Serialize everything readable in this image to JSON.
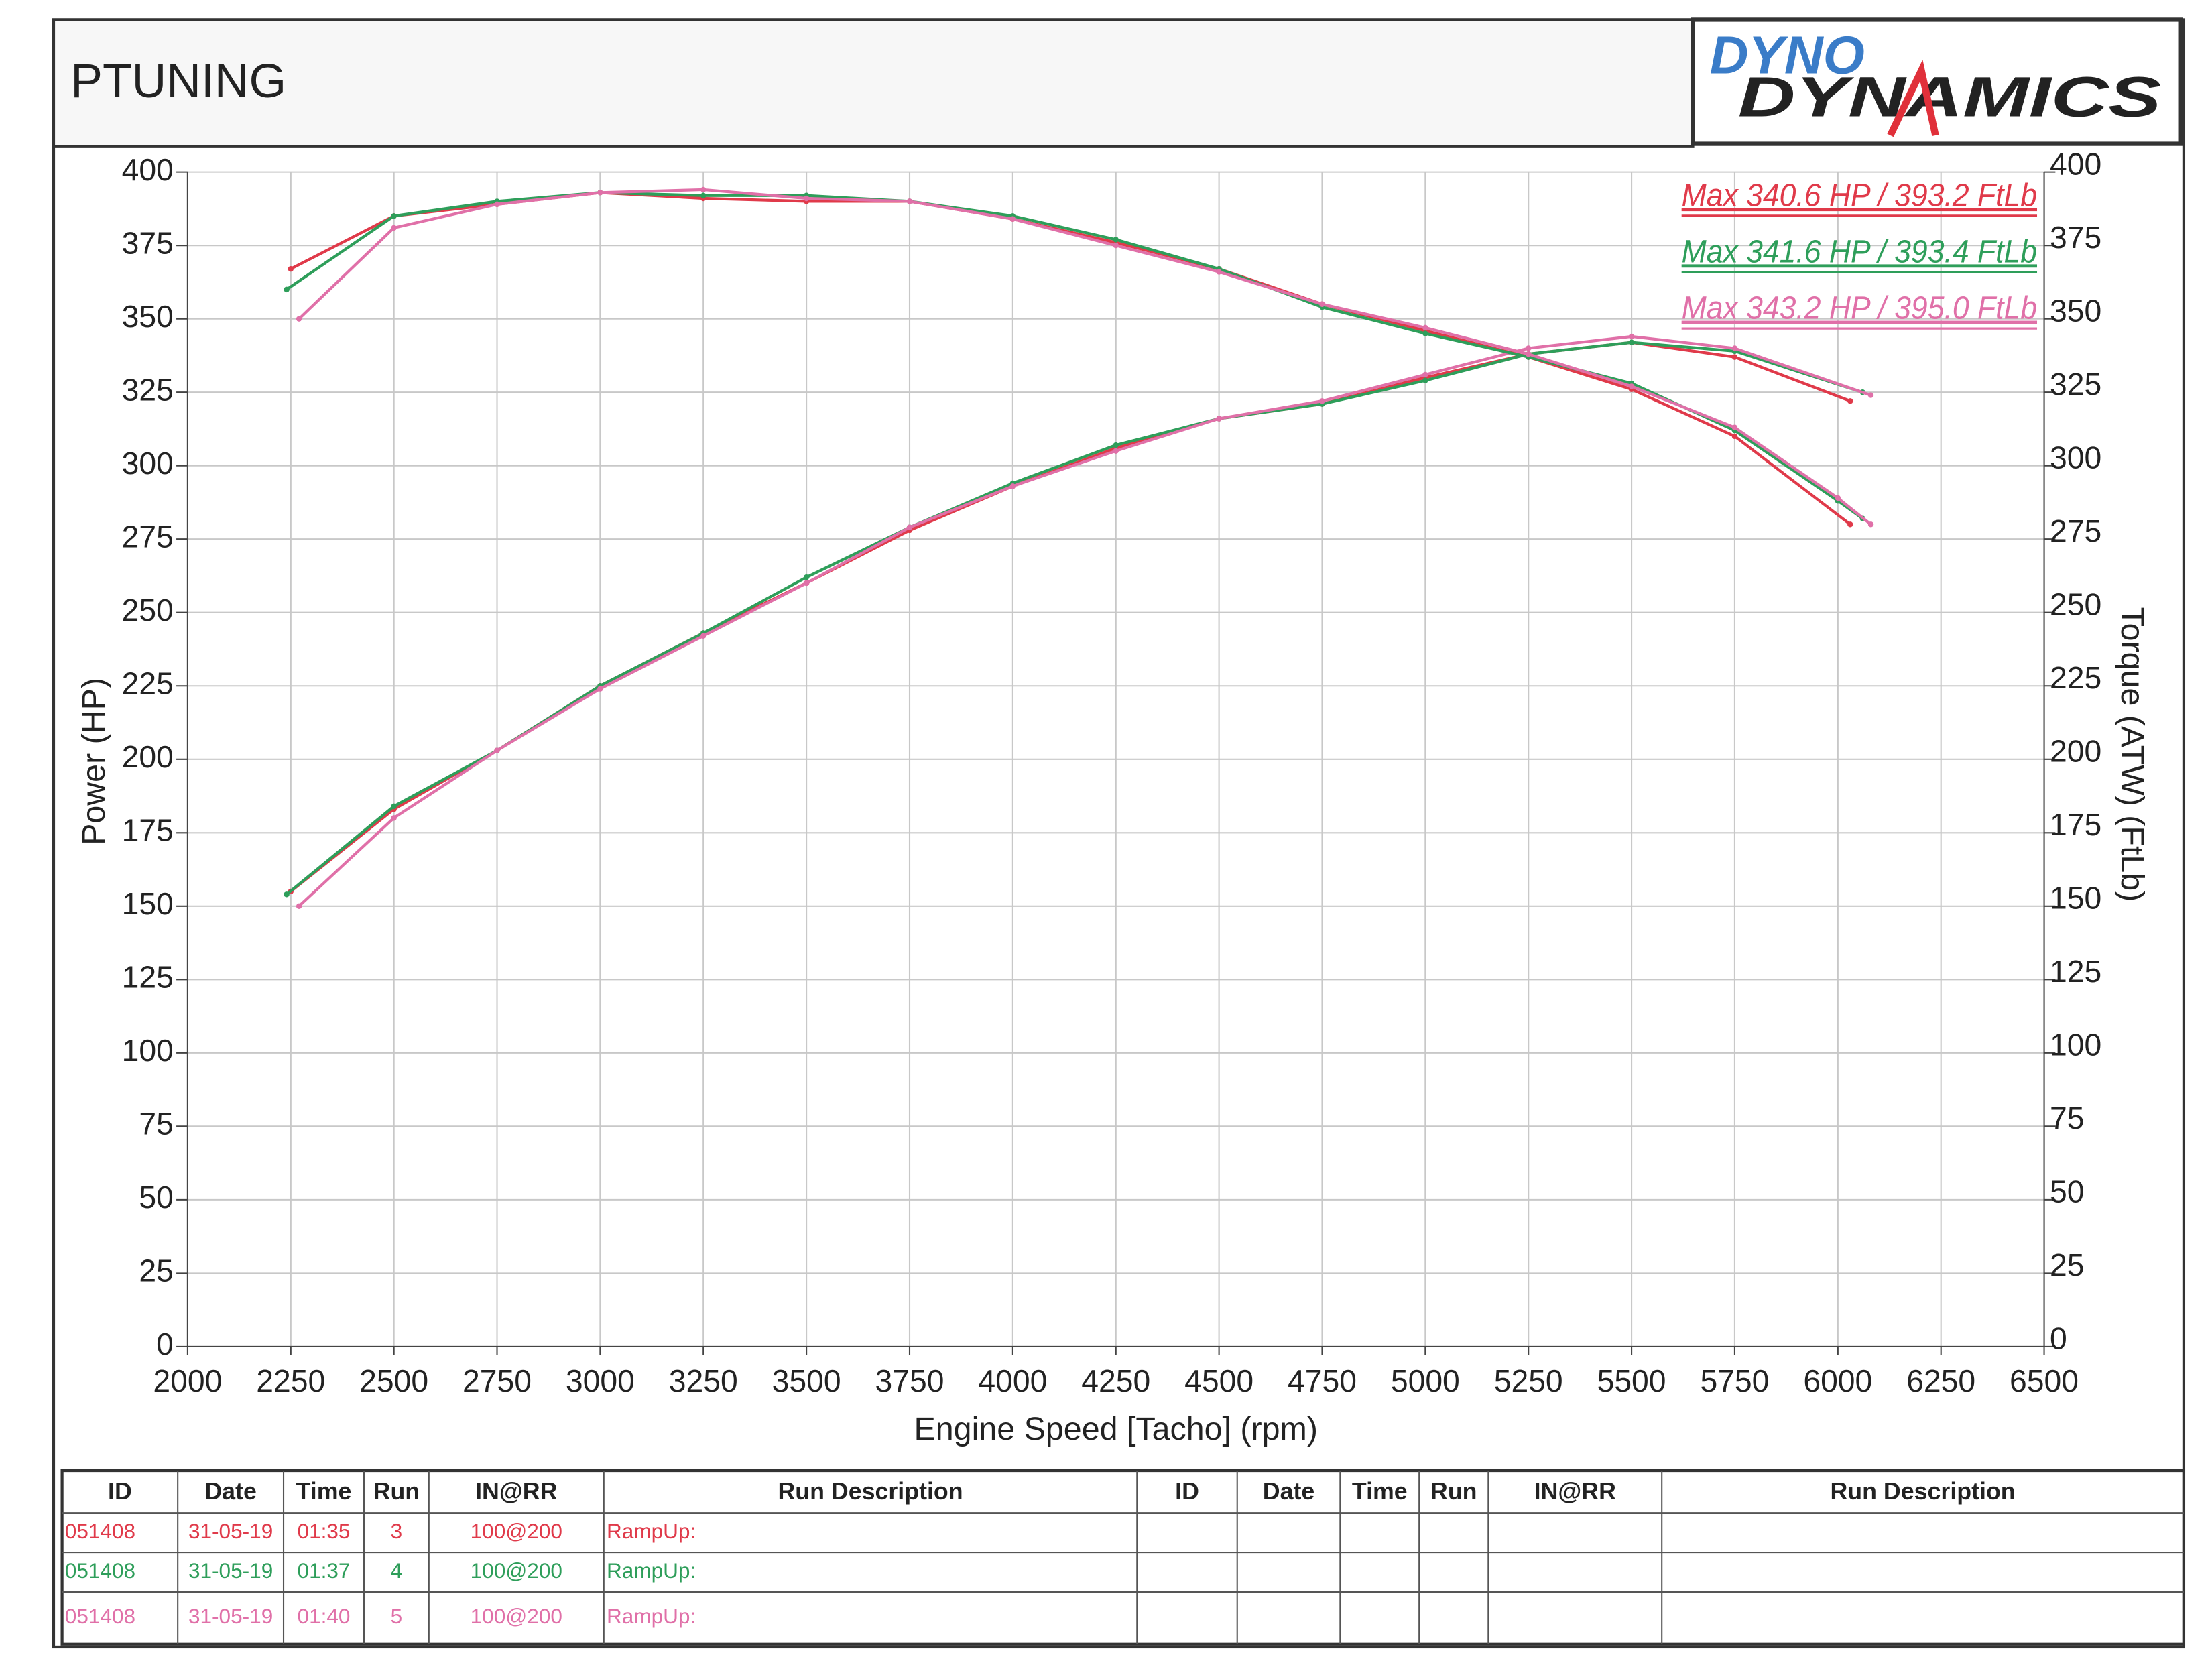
{
  "header": {
    "title": "PTUNING"
  },
  "logo": {
    "line1": "DYNO",
    "line2": "DYNAMICS"
  },
  "chart_data": {
    "type": "line",
    "x_label": "Engine Speed [Tacho] (rpm)",
    "y_label": "Power (HP)",
    "y2_label": "Torque (ATW) (FtLb)",
    "xlim": [
      2000,
      6500
    ],
    "xticks": [
      2000,
      2250,
      2500,
      2750,
      3000,
      3250,
      3500,
      3750,
      4000,
      4250,
      4500,
      4750,
      5000,
      5250,
      5500,
      5750,
      6000,
      6250,
      6500
    ],
    "ylim": [
      0,
      400
    ],
    "yticks": [
      0,
      25,
      50,
      75,
      100,
      125,
      150,
      175,
      200,
      225,
      250,
      275,
      300,
      325,
      350,
      375,
      400
    ],
    "y2lim": [
      0,
      400
    ],
    "y2ticks": [
      0,
      25,
      50,
      75,
      100,
      125,
      150,
      175,
      200,
      225,
      250,
      275,
      300,
      325,
      350,
      375,
      400
    ],
    "grid": true,
    "series": [
      {
        "color": "#e03a4a",
        "x": [
          2250,
          2500,
          2750,
          3000,
          3250,
          3500,
          3750,
          4000,
          4250,
          4500,
          4750,
          5000,
          5250,
          5500,
          5750,
          6030
        ],
        "values": [
          155,
          183,
          203,
          225,
          243,
          260,
          278,
          293,
          306,
          316,
          321,
          330,
          338,
          342,
          337,
          322
        ]
      },
      {
        "color": "#2e9e5a",
        "x": [
          2240,
          2500,
          2750,
          3000,
          3250,
          3500,
          3750,
          4000,
          4250,
          4500,
          4750,
          5000,
          5250,
          5500,
          5750,
          6060
        ],
        "values": [
          154,
          184,
          203,
          225,
          243,
          262,
          279,
          294,
          307,
          316,
          321,
          329,
          338,
          342,
          339,
          325
        ]
      },
      {
        "color": "#e070a8",
        "x": [
          2270,
          2500,
          2750,
          3000,
          3250,
          3500,
          3750,
          4000,
          4250,
          4500,
          4750,
          5000,
          5250,
          5500,
          5750,
          6080
        ],
        "values": [
          150,
          180,
          203,
          224,
          242,
          260,
          279,
          293,
          305,
          316,
          322,
          331,
          340,
          344,
          340,
          324
        ]
      },
      {
        "color": "#e03a4a",
        "axis": "y2",
        "x": [
          2250,
          2500,
          2750,
          3000,
          3250,
          3500,
          3750,
          4000,
          4250,
          4500,
          4750,
          5000,
          5250,
          5500,
          5750,
          6030
        ],
        "values": [
          367,
          385,
          389,
          393,
          391,
          390,
          390,
          384,
          376,
          367,
          355,
          346,
          337,
          326,
          310,
          280
        ]
      },
      {
        "color": "#2e9e5a",
        "axis": "y2",
        "x": [
          2240,
          2500,
          2750,
          3000,
          3250,
          3500,
          3750,
          4000,
          4250,
          4500,
          4750,
          5000,
          5250,
          5500,
          5750,
          6000,
          6060
        ],
        "values": [
          360,
          385,
          390,
          393,
          392,
          392,
          390,
          385,
          377,
          367,
          354,
          345,
          337,
          328,
          312,
          288,
          282
        ]
      },
      {
        "color": "#e070a8",
        "axis": "y2",
        "x": [
          2270,
          2500,
          2750,
          3000,
          3250,
          3500,
          3750,
          4000,
          4250,
          4500,
          4750,
          5000,
          5250,
          5500,
          5750,
          6000,
          6080
        ],
        "values": [
          350,
          381,
          389,
          393,
          394,
          391,
          390,
          384,
          375,
          366,
          355,
          347,
          338,
          327,
          313,
          289,
          280
        ]
      }
    ],
    "annotations": [
      {
        "text": "Max 340.6 HP  / 393.2 FtLb",
        "color": "#e03a4a"
      },
      {
        "text": "Max 341.6 HP  / 393.4 FtLb",
        "color": "#2e9e5a"
      },
      {
        "text": "Max 343.2 HP  / 395.0 FtLb",
        "color": "#e070a8"
      }
    ]
  },
  "table": {
    "headers": [
      "ID",
      "Date",
      "Time",
      "Run",
      "IN@RR",
      "Run Description",
      "ID",
      "Date",
      "Time",
      "Run",
      "IN@RR",
      "Run Description"
    ],
    "rows": [
      {
        "color": "#e03a4a",
        "cells": [
          "051408",
          "31-05-19",
          "01:35",
          "3",
          "100@200",
          "RampUp:"
        ]
      },
      {
        "color": "#2e9e5a",
        "cells": [
          "051408",
          "31-05-19",
          "01:37",
          "4",
          "100@200",
          "RampUp:"
        ]
      },
      {
        "color": "#e070a8",
        "cells": [
          "051408",
          "31-05-19",
          "01:40",
          "5",
          "100@200",
          "RampUp:"
        ]
      }
    ]
  }
}
